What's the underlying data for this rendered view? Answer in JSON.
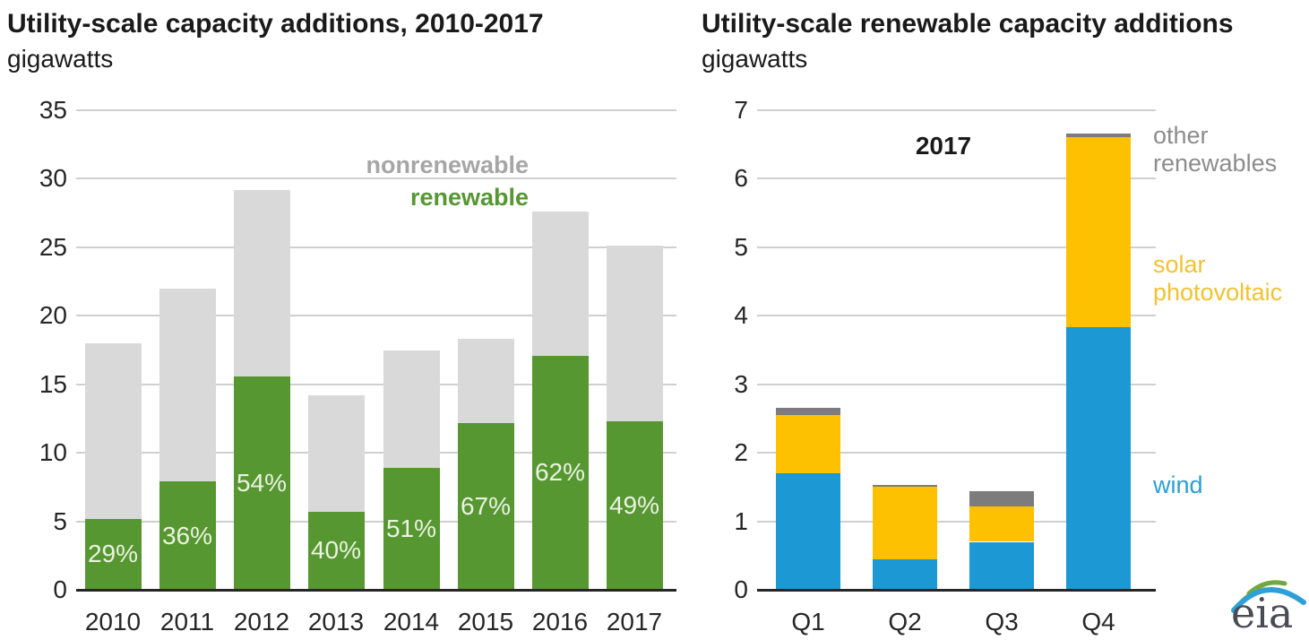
{
  "page": {
    "background": "#ffffff"
  },
  "chart_data": [
    {
      "type": "bar",
      "stacked": true,
      "title": "Utility-scale capacity additions, 2010-2017",
      "subtitle": "gigawatts",
      "categories": [
        "2010",
        "2011",
        "2012",
        "2013",
        "2014",
        "2015",
        "2016",
        "2017"
      ],
      "series": [
        {
          "name": "renewable",
          "color": "#569732",
          "values": [
            5.2,
            7.9,
            15.6,
            5.7,
            8.9,
            12.2,
            17.1,
            12.3
          ]
        },
        {
          "name": "nonrenewable",
          "color": "#d9d9d9",
          "values": [
            12.8,
            14.1,
            13.6,
            8.5,
            8.6,
            6.1,
            10.5,
            12.8
          ]
        }
      ],
      "totals": [
        18.0,
        22.0,
        29.2,
        14.2,
        17.5,
        18.3,
        27.6,
        25.1
      ],
      "bar_labels": [
        "29%",
        "36%",
        "54%",
        "40%",
        "51%",
        "67%",
        "62%",
        "49%"
      ],
      "bar_label_color": "#ebf2e0",
      "ylim": [
        0,
        35
      ],
      "yticks": [
        0,
        5,
        10,
        15,
        20,
        25,
        30,
        35
      ],
      "grid": true,
      "legend": {
        "position": "inside-top-right",
        "entries": [
          {
            "label": "nonrenewable",
            "color": "#a6a6a6"
          },
          {
            "label": "renewable",
            "color": "#569732"
          }
        ]
      }
    },
    {
      "type": "bar",
      "stacked": true,
      "title": "Utility-scale renewable capacity additions",
      "subtitle": "gigawatts",
      "annotation": "2017",
      "categories": [
        "Q1",
        "Q2",
        "Q3",
        "Q4"
      ],
      "series": [
        {
          "name": "wind",
          "color": "#1c98d4",
          "values": [
            1.7,
            0.45,
            0.7,
            3.83
          ]
        },
        {
          "name": "solar photovoltaic",
          "color": "#fdc101",
          "values": [
            0.85,
            1.05,
            0.52,
            2.78
          ]
        },
        {
          "name": "other renewables",
          "color": "#7c7c7c",
          "values": [
            0.1,
            0.03,
            0.22,
            0.05
          ]
        }
      ],
      "totals": [
        2.65,
        1.53,
        1.44,
        6.66
      ],
      "ylim": [
        0,
        7
      ],
      "yticks": [
        0,
        1,
        2,
        3,
        4,
        5,
        6,
        7
      ],
      "grid": true,
      "side_labels": [
        {
          "label": "other renewables",
          "color": "#8c8c8c"
        },
        {
          "label": "solar photovoltaic",
          "color": "#f1c232"
        },
        {
          "label": "wind",
          "color": "#2b9fd6"
        }
      ]
    }
  ],
  "logo": {
    "text": "eia",
    "text_color": "#4b4b55",
    "swoosh_blue": "#2da0d8",
    "swoosh_green": "#71a843",
    "swoosh_yellow": "#e9c235"
  }
}
